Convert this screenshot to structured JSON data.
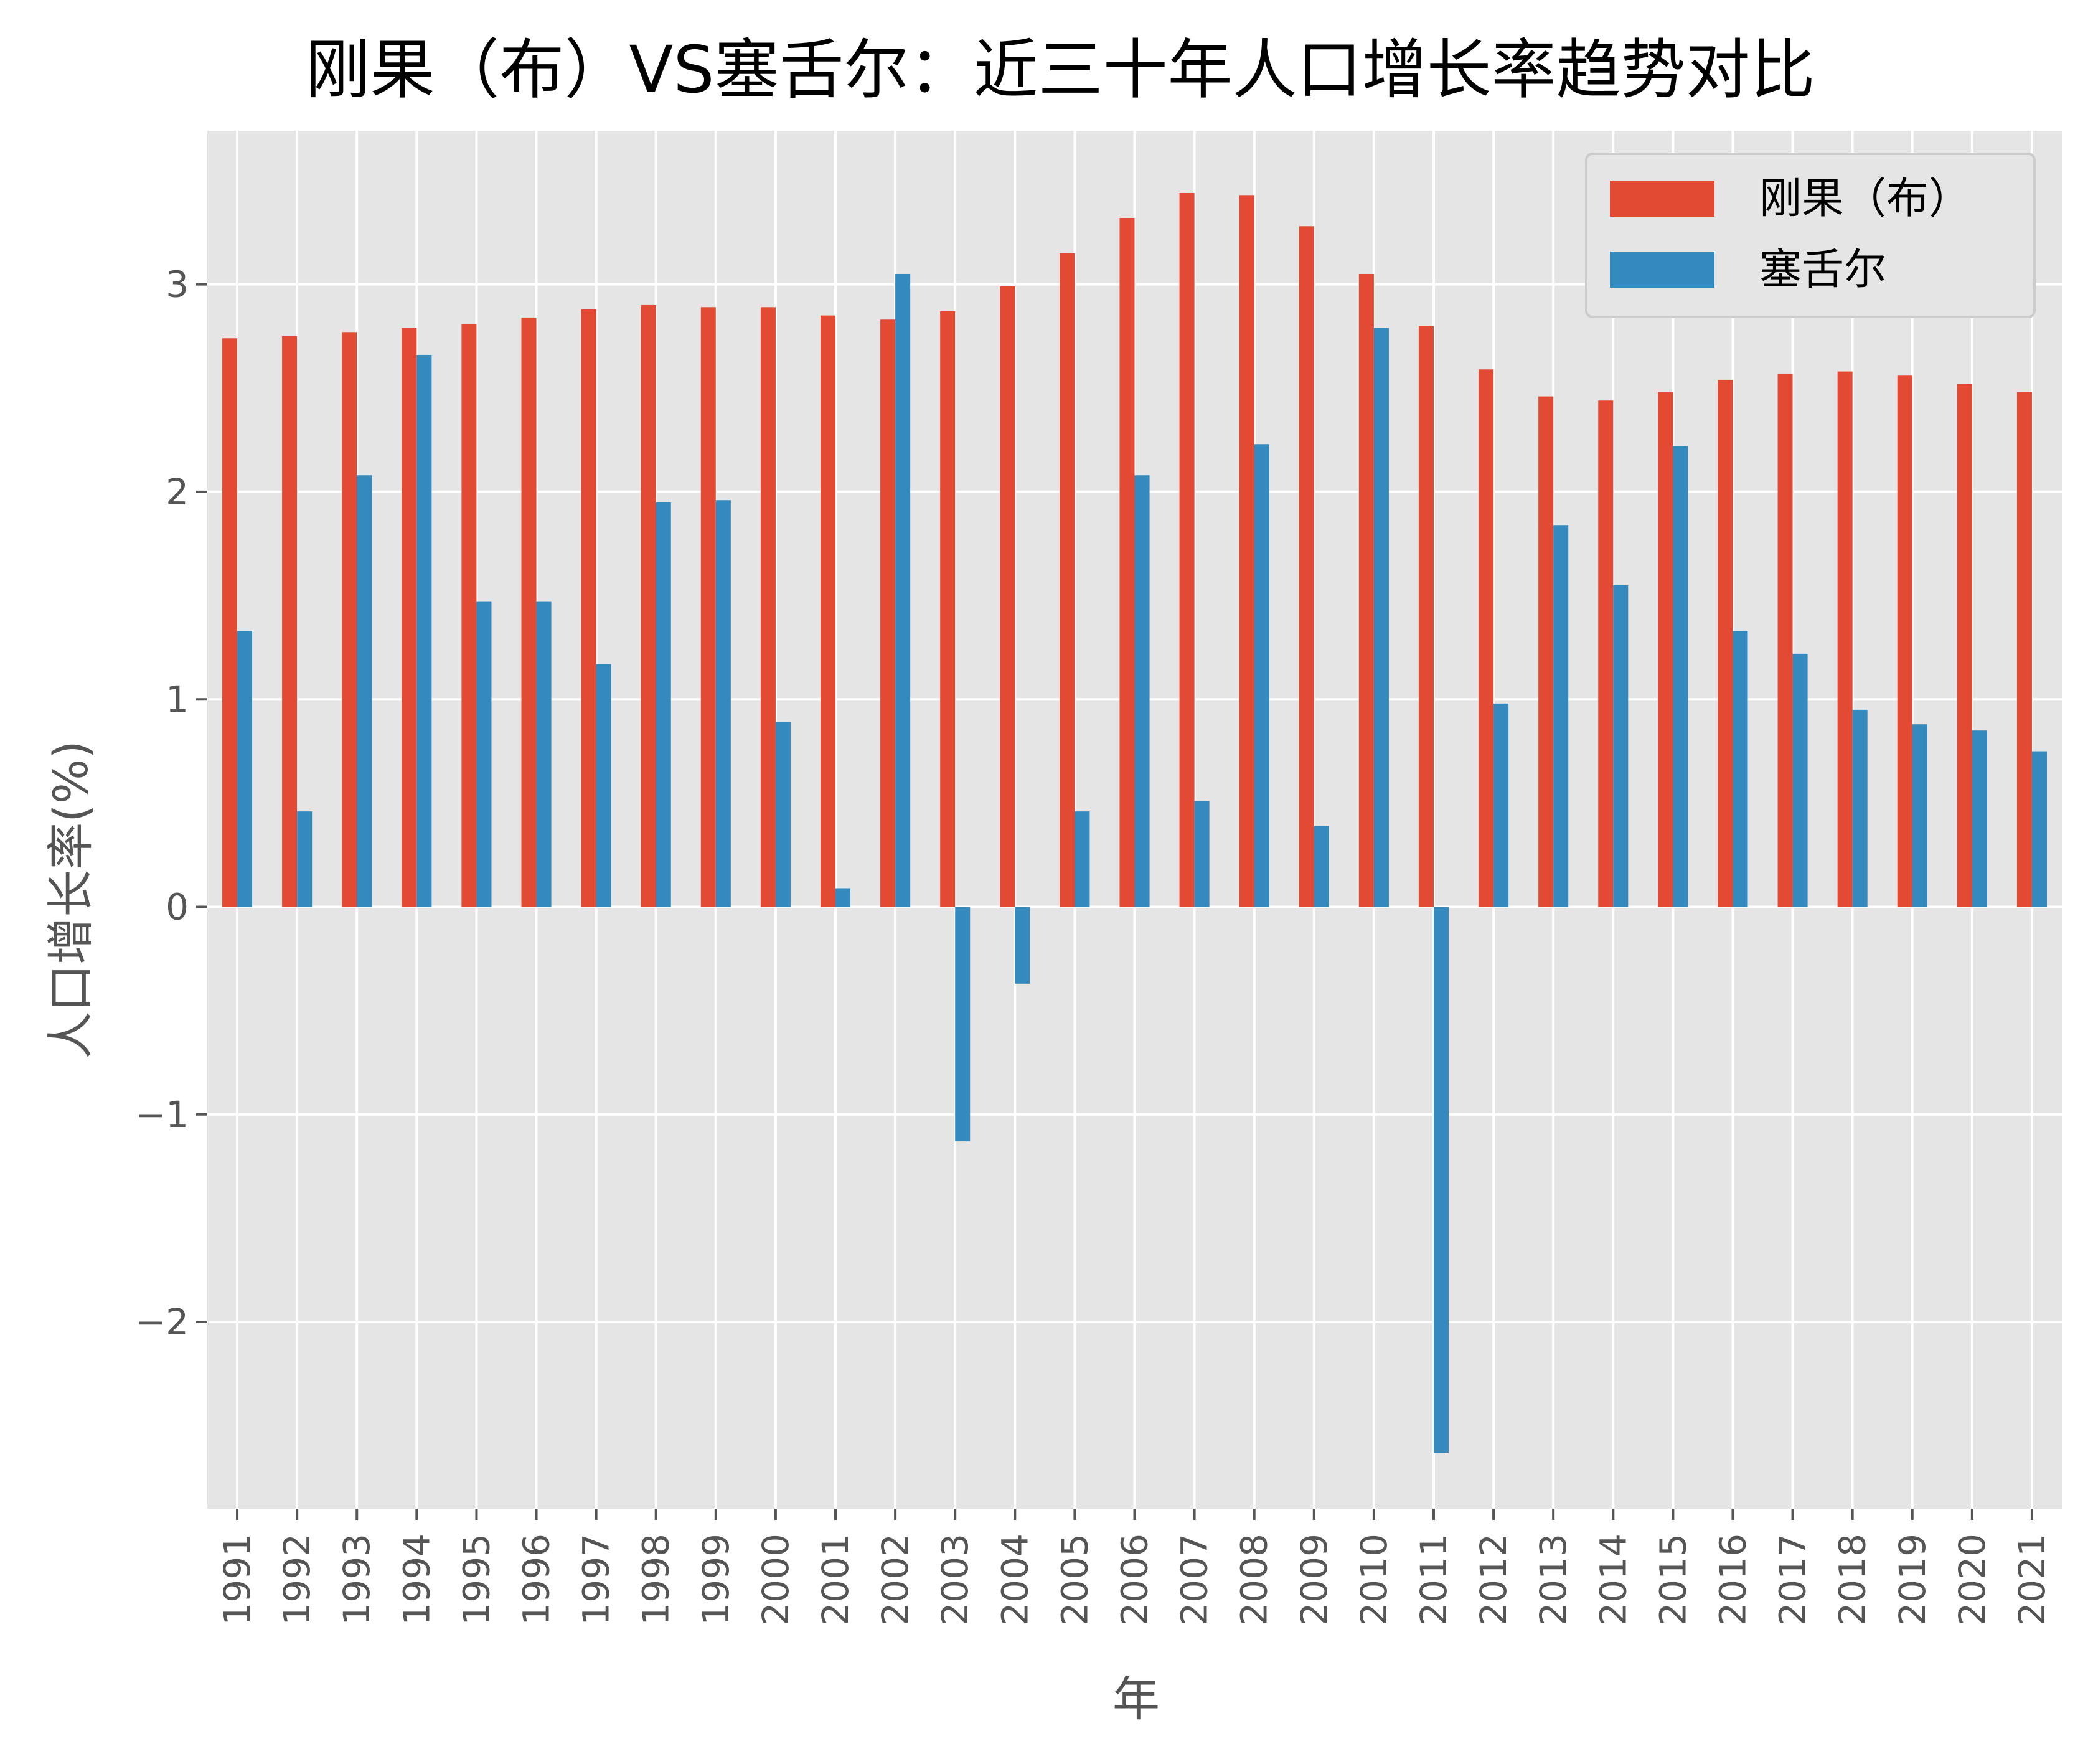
{
  "chart_data": {
    "type": "bar",
    "title": "刚果（布）VS塞舌尔：近三十年人口增长率趋势对比",
    "xlabel": "年",
    "ylabel": "人口增长率(%)",
    "categories": [
      "1991",
      "1992",
      "1993",
      "1994",
      "1995",
      "1996",
      "1997",
      "1998",
      "1999",
      "2000",
      "2001",
      "2002",
      "2003",
      "2004",
      "2005",
      "2006",
      "2007",
      "2008",
      "2009",
      "2010",
      "2011",
      "2012",
      "2013",
      "2014",
      "2015",
      "2016",
      "2017",
      "2018",
      "2019",
      "2020",
      "2021"
    ],
    "series": [
      {
        "name": "刚果（布）",
        "color": "#E24A33",
        "values": [
          2.74,
          2.75,
          2.77,
          2.79,
          2.81,
          2.84,
          2.88,
          2.9,
          2.89,
          2.89,
          2.85,
          2.83,
          2.87,
          2.99,
          3.15,
          3.32,
          3.44,
          3.43,
          3.28,
          3.05,
          2.8,
          2.59,
          2.46,
          2.44,
          2.48,
          2.54,
          2.57,
          2.58,
          2.56,
          2.52,
          2.48
        ]
      },
      {
        "name": "塞舌尔",
        "color": "#348ABD",
        "values": [
          1.33,
          0.46,
          2.08,
          2.66,
          1.47,
          1.47,
          1.17,
          1.95,
          1.96,
          0.89,
          0.09,
          3.05,
          -1.13,
          -0.37,
          0.46,
          2.08,
          0.51,
          2.23,
          0.39,
          2.79,
          -2.63,
          0.98,
          1.84,
          1.55,
          2.22,
          1.33,
          1.22,
          0.95,
          0.88,
          0.85,
          0.75
        ]
      }
    ],
    "yticks": [
      -2,
      -1,
      0,
      1,
      2,
      3
    ],
    "ytick_labels": [
      "−2",
      "−1",
      "0",
      "1",
      "2",
      "3"
    ],
    "ylim": [
      -2.9,
      3.74
    ],
    "grid": true,
    "legend_position": "top-right",
    "background_color": "#E5E5E5",
    "grid_color": "#FFFFFF"
  }
}
